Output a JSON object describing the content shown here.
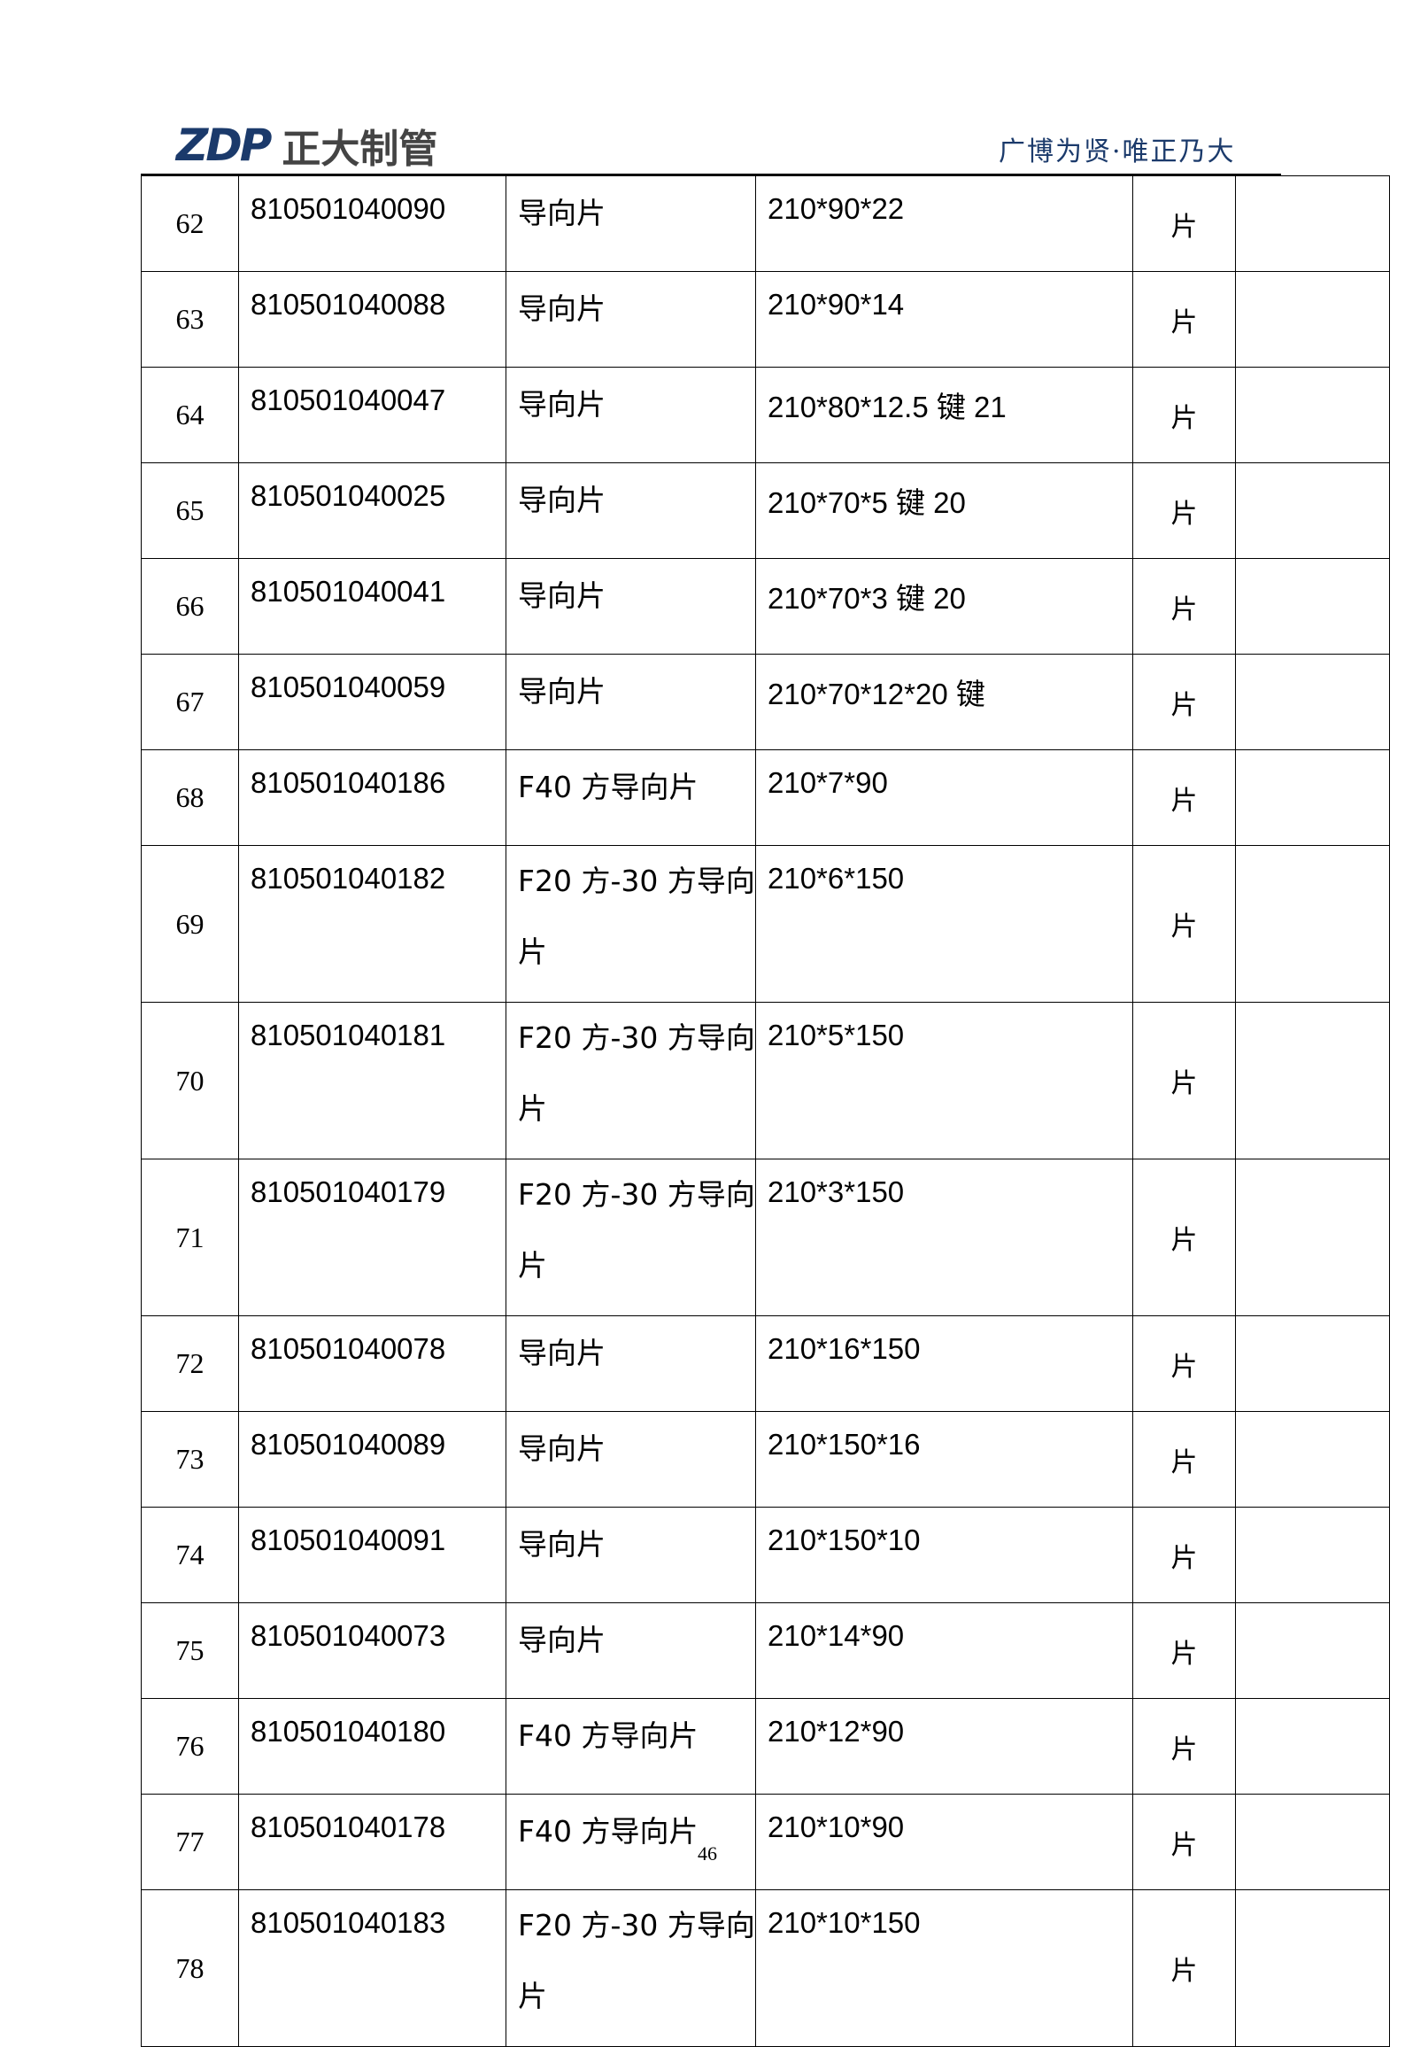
{
  "header": {
    "logo_mark": "ZDP",
    "logo_text": "正大制管",
    "slogan": "广博为贤·唯正乃大",
    "brand_color": "#1b3a6b"
  },
  "rows": [
    {
      "no": "62",
      "code": "810501040090",
      "name": "导向片",
      "spec": "210*90*22",
      "unit": "片",
      "remark": "",
      "tall": false
    },
    {
      "no": "63",
      "code": "810501040088",
      "name": "导向片",
      "spec": "210*90*14",
      "unit": "片",
      "remark": "",
      "tall": false
    },
    {
      "no": "64",
      "code": "810501040047",
      "name": "导向片",
      "spec": "210*80*12.5 键 21",
      "unit": "片",
      "remark": "",
      "tall": false
    },
    {
      "no": "65",
      "code": "810501040025",
      "name": "导向片",
      "spec": "210*70*5 键 20",
      "unit": "片",
      "remark": "",
      "tall": false
    },
    {
      "no": "66",
      "code": "810501040041",
      "name": "导向片",
      "spec": "210*70*3 键 20",
      "unit": "片",
      "remark": "",
      "tall": false
    },
    {
      "no": "67",
      "code": "810501040059",
      "name": "导向片",
      "spec": "210*70*12*20 键",
      "unit": "片",
      "remark": "",
      "tall": false
    },
    {
      "no": "68",
      "code": "810501040186",
      "name": "F40 方导向片",
      "spec": "210*7*90",
      "unit": "片",
      "remark": "",
      "tall": false
    },
    {
      "no": "69",
      "code": "810501040182",
      "name": "F20 方-30 方导向片",
      "spec": "210*6*150",
      "unit": "片",
      "remark": "",
      "tall": true
    },
    {
      "no": "70",
      "code": "810501040181",
      "name": "F20 方-30 方导向片",
      "spec": "210*5*150",
      "unit": "片",
      "remark": "",
      "tall": true
    },
    {
      "no": "71",
      "code": "810501040179",
      "name": "F20 方-30 方导向片",
      "spec": "210*3*150",
      "unit": "片",
      "remark": "",
      "tall": true
    },
    {
      "no": "72",
      "code": "810501040078",
      "name": "导向片",
      "spec": "210*16*150",
      "unit": "片",
      "remark": "",
      "tall": false
    },
    {
      "no": "73",
      "code": "810501040089",
      "name": "导向片",
      "spec": "210*150*16",
      "unit": "片",
      "remark": "",
      "tall": false
    },
    {
      "no": "74",
      "code": "810501040091",
      "name": "导向片",
      "spec": "210*150*10",
      "unit": "片",
      "remark": "",
      "tall": false
    },
    {
      "no": "75",
      "code": "810501040073",
      "name": "导向片",
      "spec": "210*14*90",
      "unit": "片",
      "remark": "",
      "tall": false
    },
    {
      "no": "76",
      "code": "810501040180",
      "name": "F40 方导向片",
      "spec": "210*12*90",
      "unit": "片",
      "remark": "",
      "tall": false
    },
    {
      "no": "77",
      "code": "810501040178",
      "name": "F40 方导向片",
      "spec": "210*10*90",
      "unit": "片",
      "remark": "",
      "tall": false
    },
    {
      "no": "78",
      "code": "810501040183",
      "name": "F20 方-30 方导向片",
      "spec": "210*10*150",
      "unit": "片",
      "remark": "",
      "tall": true
    }
  ],
  "footer": {
    "page_number": "46"
  }
}
